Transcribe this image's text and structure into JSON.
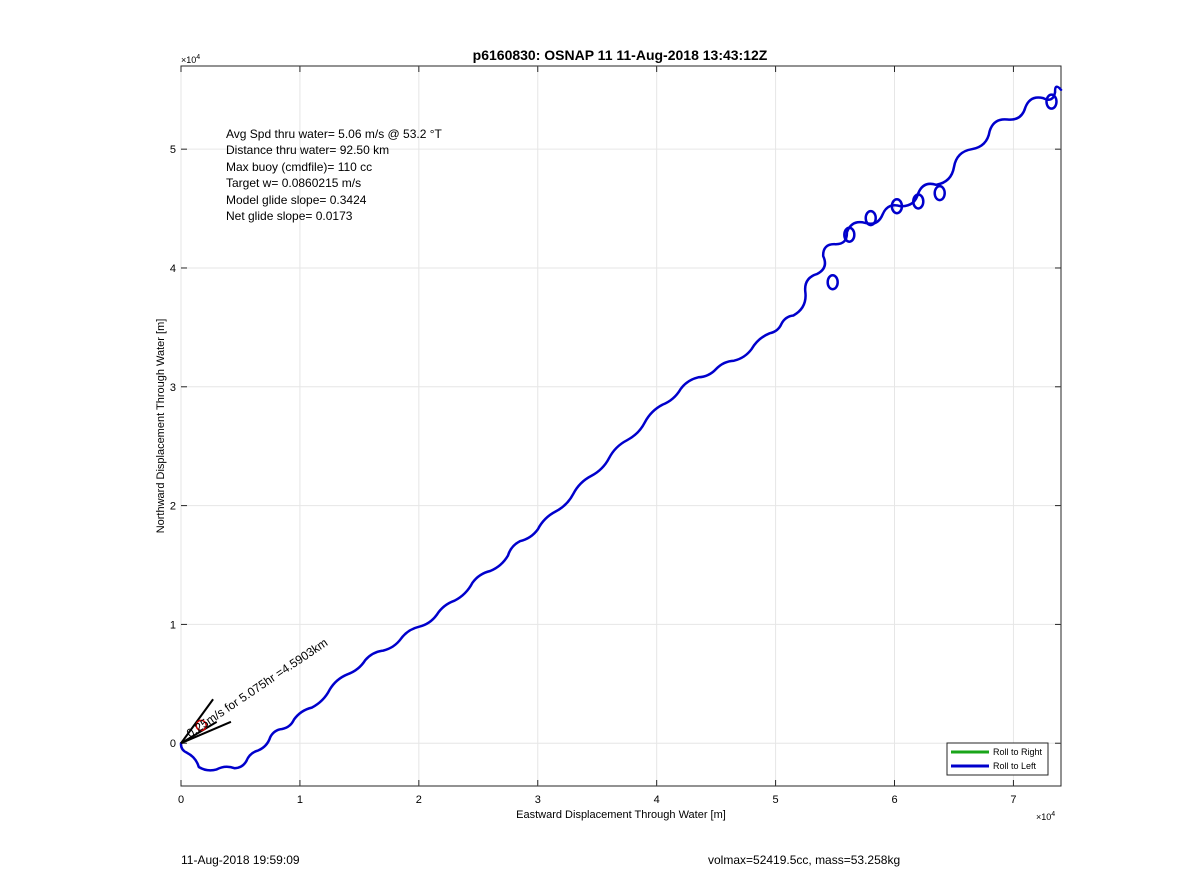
{
  "chart_data": {
    "type": "line",
    "title": "p6160830: OSNAP 11 11-Aug-2018 13:43:12Z",
    "xlabel": "Eastward Displacement Through Water [m]",
    "ylabel": "Northward Displacement Through Water [m]",
    "x_exponent_label": "×10",
    "x_exponent_power": "4",
    "y_exponent_label": "×10",
    "y_exponent_power": "4",
    "xlim": [
      0,
      74000
    ],
    "ylim": [
      -3600,
      57000
    ],
    "xticks": [
      0,
      10000,
      20000,
      30000,
      40000,
      50000,
      60000,
      70000
    ],
    "xtick_labels": [
      "0",
      "1",
      "2",
      "3",
      "4",
      "5",
      "6",
      "7"
    ],
    "yticks": [
      0,
      10000,
      20000,
      30000,
      40000,
      50000
    ],
    "ytick_labels": [
      "0",
      "1",
      "2",
      "3",
      "4",
      "5"
    ],
    "grid": true,
    "legend_position": "bottom-right",
    "annotations": [
      "Avg Spd thru water=  5.06 m/s @  53.2 °T",
      "Distance thru water= 92.50 km",
      "Max buoy (cmdfile)= 110 cc",
      "Target w= 0.0860215 m/s",
      "Model glide slope= 0.3424",
      "Net glide slope= 0.0173"
    ],
    "current_label": "0.25m/s for 5.075hr =4.5903km",
    "current_arrow": {
      "x": [
        0,
        2200,
        3000
      ],
      "y": [
        0,
        1300,
        1800
      ]
    },
    "series": [
      {
        "name": "Roll to Right",
        "color": "#1aa51a",
        "x": [],
        "y": []
      },
      {
        "name": "Roll to Left",
        "color": "#0000cc",
        "x": [
          0,
          500,
          1500,
          3000,
          4500,
          5500,
          6500,
          7500,
          8500,
          9500,
          11000,
          12500,
          14000,
          15500,
          17000,
          18500,
          20000,
          21500,
          23000,
          24500,
          26000,
          27500,
          28500,
          30000,
          31500,
          33000,
          34500,
          36000,
          37500,
          39000,
          40500,
          42000,
          43500,
          45000,
          46500,
          48000,
          49500,
          50500,
          51500,
          52500,
          53500,
          54000,
          55000,
          56000,
          57500,
          59000,
          60500,
          62000,
          63500,
          65000,
          66500,
          68000,
          69500,
          71000,
          72500,
          73500,
          74000
        ],
        "y": [
          0,
          -800,
          -2000,
          -2200,
          -2100,
          -1500,
          -600,
          500,
          1200,
          2000,
          3000,
          4500,
          5800,
          7000,
          7800,
          8800,
          9800,
          10800,
          12000,
          13500,
          14500,
          15800,
          17000,
          18000,
          19500,
          21000,
          22500,
          24000,
          25500,
          27000,
          28500,
          29800,
          30800,
          31500,
          32200,
          33200,
          34500,
          35300,
          36000,
          38000,
          39500,
          41000,
          42000,
          43000,
          43800,
          44500,
          45200,
          46300,
          47000,
          48500,
          50000,
          51500,
          52500,
          53500,
          54300,
          54800,
          55000
        ]
      }
    ]
  },
  "footer": {
    "left": "11-Aug-2018 19:59:09",
    "right": "volmax=52419.5cc, mass=53.258kg"
  }
}
